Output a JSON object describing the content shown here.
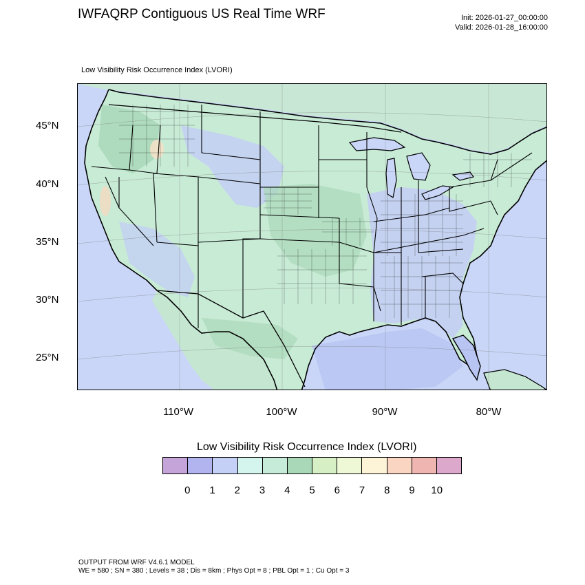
{
  "header": {
    "title": "IWFAQRP Contiguous US Real Time WRF",
    "init": "Init: 2026-01-27_00:00:00",
    "valid": "Valid: 2026-01-28_16:00:00"
  },
  "map": {
    "subtitle": "Low Visibility Risk Occurrence Index   (LVORI)",
    "lat_labels": [
      "45°N",
      "40°N",
      "35°N",
      "30°N",
      "25°N"
    ],
    "lon_labels": [
      "110°W",
      "100°W",
      "90°W",
      "80°W"
    ],
    "colors": {
      "ocean": "#c9d6f7",
      "land_base": "#c8ebd6",
      "low_risk": "#c3cdf5",
      "high_risk": "#a9d8b8",
      "border": "#000000"
    }
  },
  "legend": {
    "title": "Low Visibility Risk Occurrence Index  (LVORI)",
    "ticks": [
      "0",
      "1",
      "2",
      "3",
      "4",
      "5",
      "6",
      "7",
      "8",
      "9",
      "10"
    ],
    "colors": [
      "#c5a4d9",
      "#b1b4ef",
      "#c5d0f6",
      "#d4f5ee",
      "#c6ecd9",
      "#a9d8b8",
      "#d7efc5",
      "#eef7d6",
      "#fdf3d7",
      "#fad6c2",
      "#efb5b1",
      "#dca8cc"
    ]
  },
  "footer": {
    "line1": "OUTPUT FROM WRF V4.6.1 MODEL",
    "line2": "WE = 580 ; SN = 380 ; Levels = 38 ; Dis = 8km ; Phys Opt = 8 ; PBL Opt = 1 ; Cu Opt = 3"
  }
}
